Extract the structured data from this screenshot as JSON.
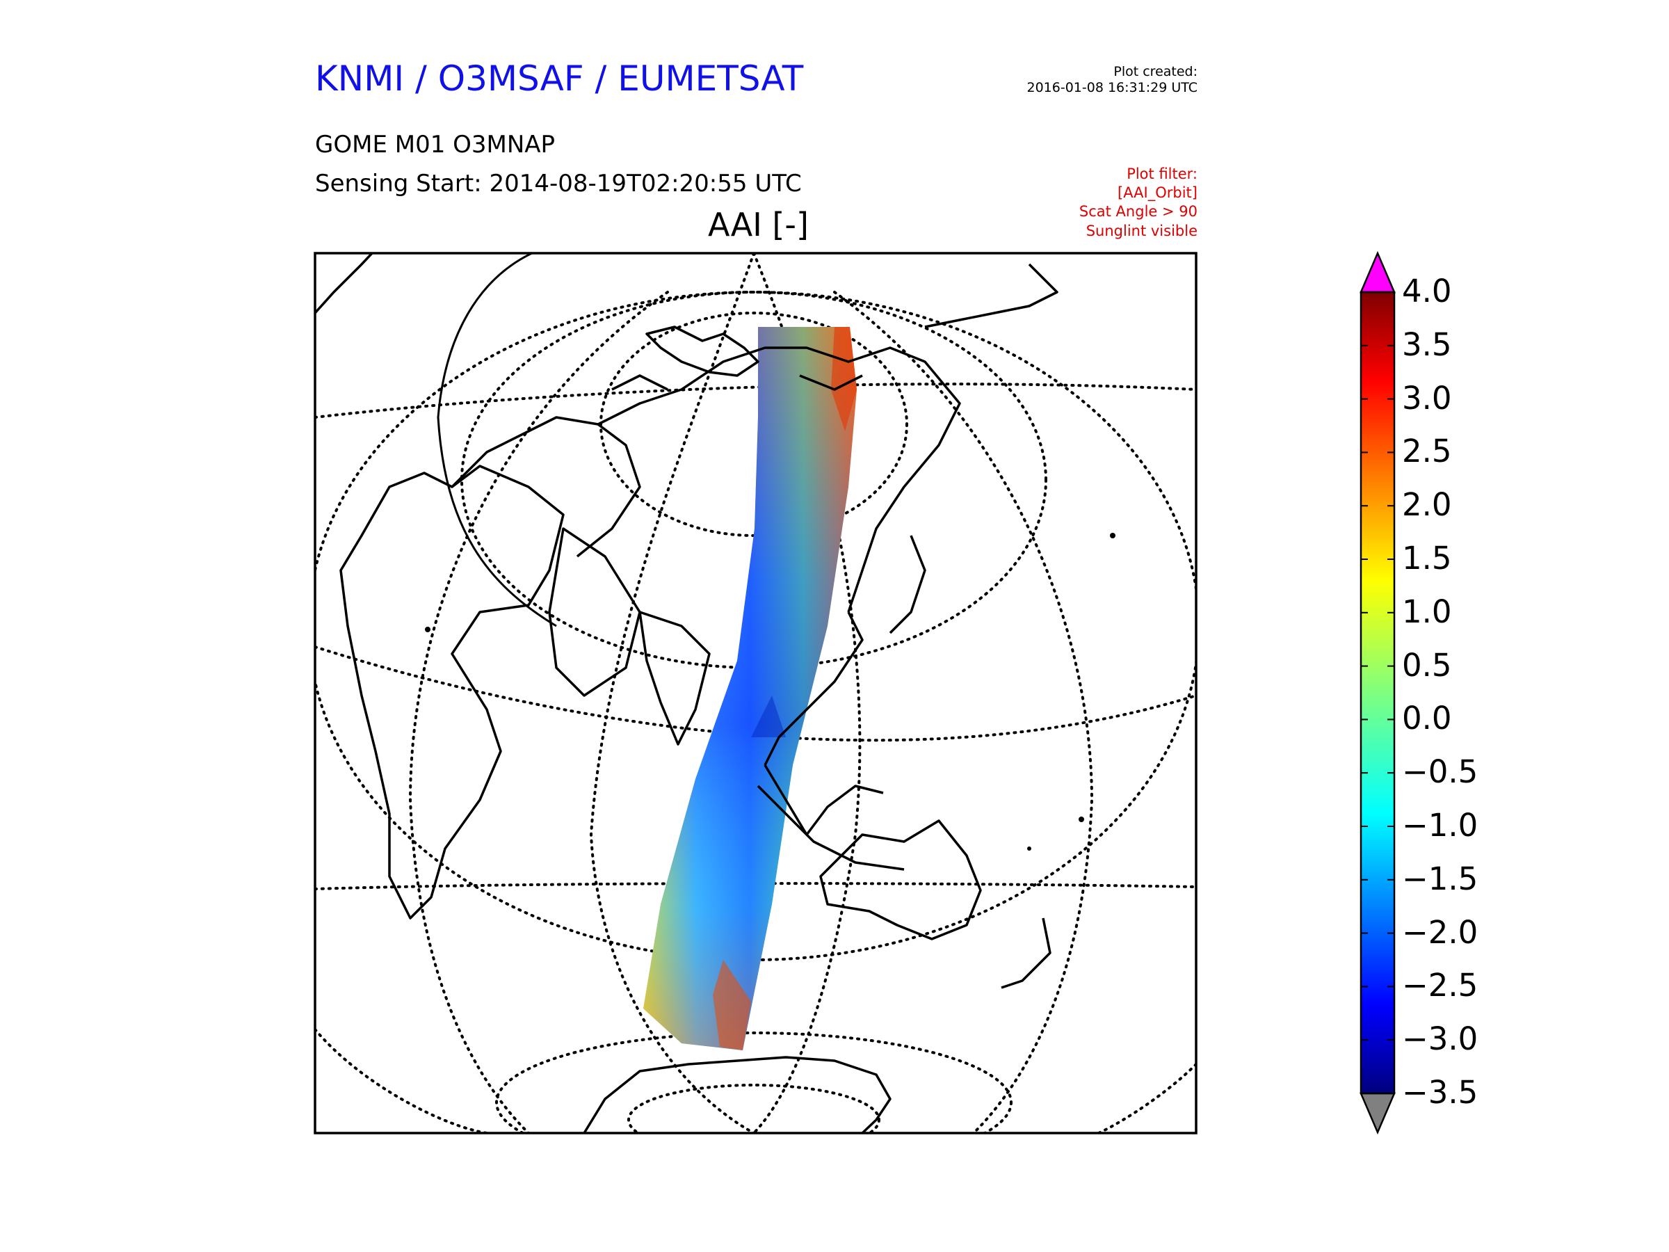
{
  "header": {
    "org_title": "KNMI / O3MSAF / EUMETSAT",
    "created_label": "Plot created:",
    "created_value": "2016-01-08 16:31:29 UTC",
    "product": "GOME M01 O3MNAP",
    "sensing_start": "Sensing Start: 2014-08-19T02:20:55 UTC",
    "filter_lines": [
      "Plot filter:",
      "[AAI_Orbit]",
      "Scat Angle > 90",
      "Sunglint visible"
    ]
  },
  "map": {
    "title": "AAI [-]",
    "projection": "orthographic",
    "graticule": "dotted",
    "coastlines": "black"
  },
  "colorbar": {
    "min": -3.5,
    "max": 4.0,
    "tick_labels": [
      "4.0",
      "3.5",
      "3.0",
      "2.5",
      "2.0",
      "1.5",
      "1.0",
      "0.5",
      "0.0",
      "−0.5",
      "−1.0",
      "−1.5",
      "−2.0",
      "−2.5",
      "−3.0",
      "−3.5"
    ],
    "over_color": "#ff00ff",
    "under_color": "#808080",
    "colormap": "jet"
  }
}
